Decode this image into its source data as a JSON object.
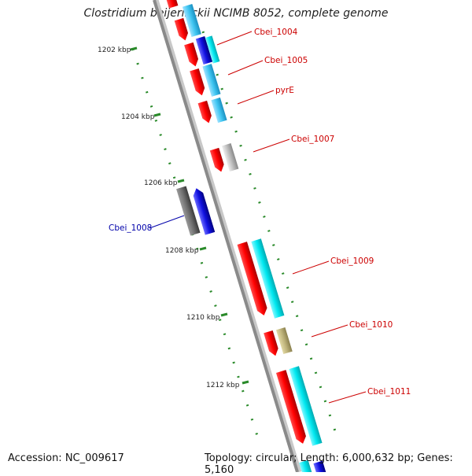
{
  "title": "Clostridium beijerinckii NCIMB 8052, complete genome",
  "footer": {
    "accession": "Accession: NC_009617",
    "summary": "Topology: circular; Length: 6,000,632 bp; Genes: 5,160"
  },
  "ticks": [
    {
      "label": "1202 kbp"
    },
    {
      "label": "1204 kbp"
    },
    {
      "label": "1206 kbp"
    },
    {
      "label": "1208 kbp"
    },
    {
      "label": "1210 kbp"
    },
    {
      "label": "1212 kbp"
    }
  ],
  "genes": [
    {
      "label": "Cbei_1004",
      "strand": "forward"
    },
    {
      "label": "Cbei_1005",
      "strand": "forward"
    },
    {
      "label": "pyrE",
      "strand": "forward"
    },
    {
      "label": "Cbei_1007",
      "strand": "forward"
    },
    {
      "label": "Cbei_1008",
      "strand": "reverse"
    },
    {
      "label": "Cbei_1009",
      "strand": "forward"
    },
    {
      "label": "Cbei_1010",
      "strand": "forward"
    },
    {
      "label": "Cbei_1011",
      "strand": "forward"
    }
  ],
  "colors": {
    "backbone": "#8a8a8a",
    "cds": "#ff0000",
    "forward_label": "#cc0000",
    "reverse_label": "#0000aa",
    "tick": "#2a8a2a",
    "cyan": "#00e8f0",
    "light_blue": "#3fc6f2",
    "dark_blue": "#1010e0",
    "grey": "#bdbdbd",
    "dark_grey": "#6e6e6e",
    "khaki": "#bdb27a"
  }
}
